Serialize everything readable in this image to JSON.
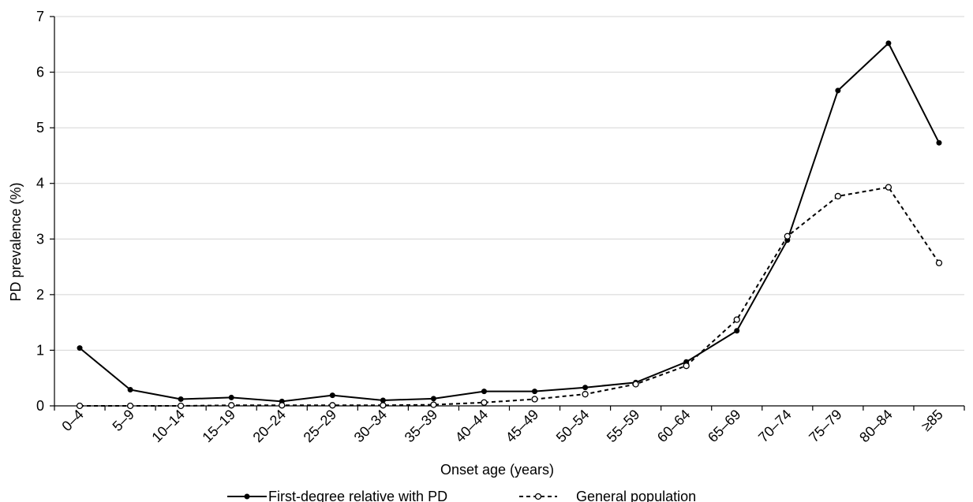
{
  "chart_data": {
    "type": "line",
    "ylabel": "PD prevalence (%)",
    "xlabel": "Onset age (years)",
    "ylim": [
      0,
      7
    ],
    "yticks": [
      0,
      1,
      2,
      3,
      4,
      5,
      6,
      7
    ],
    "grid": "horizontal",
    "legend_position": "bottom",
    "categories": [
      "0–4",
      "5–9",
      "10–14",
      "15–19",
      "20–24",
      "25–29",
      "30–34",
      "35–39",
      "40–44",
      "45–49",
      "50–54",
      "55–59",
      "60–64",
      "65–69",
      "70–74",
      "75–79",
      "80–84",
      "≥85"
    ],
    "series": [
      {
        "name": "First-degree relative with PD",
        "style": "solid",
        "marker": "filled-circle",
        "color": "#000000",
        "values": [
          1.04,
          0.29,
          0.12,
          0.15,
          0.08,
          0.19,
          0.1,
          0.13,
          0.26,
          0.26,
          0.33,
          0.42,
          0.79,
          1.35,
          2.98,
          5.67,
          6.52,
          4.73
        ]
      },
      {
        "name": "General population",
        "style": "dashed",
        "marker": "open-circle",
        "color": "#000000",
        "values": [
          0.0,
          0.0,
          0.0,
          0.01,
          0.01,
          0.01,
          0.01,
          0.02,
          0.06,
          0.12,
          0.21,
          0.39,
          0.72,
          1.55,
          3.05,
          3.77,
          3.93,
          2.57
        ]
      }
    ]
  }
}
